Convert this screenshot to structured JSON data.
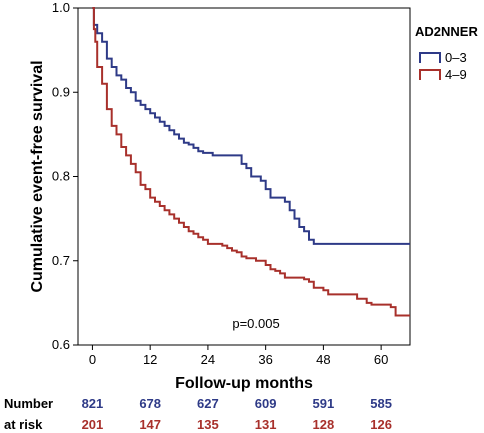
{
  "chart_data": {
    "type": "line",
    "title": "",
    "xlabel": "Follow-up months",
    "ylabel": "Cumulative event-free survival",
    "xlim": [
      -3,
      66
    ],
    "ylim": [
      0.6,
      1.0
    ],
    "xticks": [
      0,
      12,
      24,
      36,
      48,
      60
    ],
    "yticks": [
      0.6,
      0.7,
      0.8,
      0.9,
      1.0
    ],
    "ytick_labels": [
      "0.6",
      "0.7",
      "0.8",
      "0.9",
      "1.0"
    ],
    "grid": false,
    "legend": {
      "title": "AD2NNER",
      "position": "top-right"
    },
    "annotation": "p=0.005",
    "series": [
      {
        "name": "0–3",
        "color": "#2e3a87",
        "points": [
          [
            0,
            1.0
          ],
          [
            0.3,
            0.98
          ],
          [
            1,
            0.97
          ],
          [
            2,
            0.96
          ],
          [
            3,
            0.94
          ],
          [
            4,
            0.93
          ],
          [
            5,
            0.92
          ],
          [
            6,
            0.915
          ],
          [
            7,
            0.905
          ],
          [
            8,
            0.9
          ],
          [
            9,
            0.89
          ],
          [
            10,
            0.885
          ],
          [
            11,
            0.88
          ],
          [
            12,
            0.875
          ],
          [
            13,
            0.87
          ],
          [
            14,
            0.865
          ],
          [
            15,
            0.86
          ],
          [
            16,
            0.855
          ],
          [
            17,
            0.85
          ],
          [
            18,
            0.845
          ],
          [
            19,
            0.84
          ],
          [
            20,
            0.838
          ],
          [
            21,
            0.834
          ],
          [
            22,
            0.83
          ],
          [
            23,
            0.828
          ],
          [
            24,
            0.828
          ],
          [
            25,
            0.825
          ],
          [
            27,
            0.825
          ],
          [
            30,
            0.825
          ],
          [
            31,
            0.815
          ],
          [
            32,
            0.81
          ],
          [
            33,
            0.8
          ],
          [
            34,
            0.8
          ],
          [
            35,
            0.795
          ],
          [
            36,
            0.785
          ],
          [
            37,
            0.775
          ],
          [
            38,
            0.775
          ],
          [
            40,
            0.77
          ],
          [
            41,
            0.76
          ],
          [
            42,
            0.75
          ],
          [
            43,
            0.74
          ],
          [
            44,
            0.735
          ],
          [
            45,
            0.725
          ],
          [
            46,
            0.72
          ],
          [
            48,
            0.72
          ],
          [
            49,
            0.72
          ],
          [
            66,
            0.72
          ]
        ]
      },
      {
        "name": "4–9",
        "color": "#a8302b",
        "points": [
          [
            0,
            1.0
          ],
          [
            0.3,
            0.975
          ],
          [
            0.6,
            0.96
          ],
          [
            1,
            0.93
          ],
          [
            2,
            0.91
          ],
          [
            3,
            0.88
          ],
          [
            4,
            0.86
          ],
          [
            5,
            0.85
          ],
          [
            6,
            0.835
          ],
          [
            7,
            0.825
          ],
          [
            8,
            0.815
          ],
          [
            9,
            0.805
          ],
          [
            10,
            0.79
          ],
          [
            11,
            0.785
          ],
          [
            12,
            0.775
          ],
          [
            13,
            0.77
          ],
          [
            14,
            0.765
          ],
          [
            15,
            0.76
          ],
          [
            16,
            0.755
          ],
          [
            17,
            0.75
          ],
          [
            18,
            0.745
          ],
          [
            19,
            0.74
          ],
          [
            20,
            0.735
          ],
          [
            21,
            0.732
          ],
          [
            22,
            0.728
          ],
          [
            23,
            0.725
          ],
          [
            24,
            0.72
          ],
          [
            26,
            0.72
          ],
          [
            27,
            0.718
          ],
          [
            28,
            0.715
          ],
          [
            29,
            0.712
          ],
          [
            30,
            0.71
          ],
          [
            31,
            0.705
          ],
          [
            32,
            0.703
          ],
          [
            34,
            0.7
          ],
          [
            36,
            0.695
          ],
          [
            37,
            0.69
          ],
          [
            38,
            0.688
          ],
          [
            39,
            0.685
          ],
          [
            40,
            0.68
          ],
          [
            42,
            0.68
          ],
          [
            44,
            0.678
          ],
          [
            45,
            0.675
          ],
          [
            46,
            0.668
          ],
          [
            48,
            0.665
          ],
          [
            49,
            0.66
          ],
          [
            54,
            0.66
          ],
          [
            55,
            0.655
          ],
          [
            57,
            0.65
          ],
          [
            58,
            0.648
          ],
          [
            62,
            0.645
          ],
          [
            63,
            0.635
          ],
          [
            66,
            0.635
          ]
        ]
      }
    ]
  },
  "risk_table": {
    "label_line1": "Number",
    "label_line2": "at risk",
    "rows": [
      {
        "group": "0–3",
        "color": "#2e3a87",
        "values": [
          "821",
          "678",
          "627",
          "609",
          "591",
          "585"
        ]
      },
      {
        "group": "4–9",
        "color": "#a8302b",
        "values": [
          "201",
          "147",
          "135",
          "131",
          "128",
          "126"
        ]
      }
    ]
  }
}
